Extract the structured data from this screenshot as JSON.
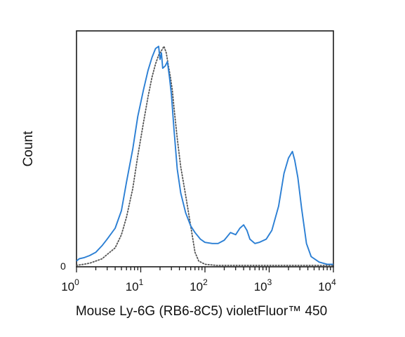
{
  "chart_data": {
    "type": "line",
    "title": "",
    "xlabel": "Mouse Ly-6G (RB6-8C5) violetFluor™ 450",
    "ylabel": "Count",
    "x_scale": "log10",
    "xlim": [
      1,
      10000
    ],
    "ylim": [
      0,
      100
    ],
    "y_tick_labels": [
      "0"
    ],
    "x_tick_labels": [
      {
        "base": "10",
        "exp": "0"
      },
      {
        "base": "10",
        "exp": "1"
      },
      {
        "base": "10",
        "exp": "2"
      },
      {
        "base": "10",
        "exp": "3"
      },
      {
        "base": "10",
        "exp": "4"
      }
    ],
    "grid": false,
    "series": [
      {
        "style": "solid",
        "color": "#2b7fd4",
        "x": [
          1.0,
          1.1,
          1.3,
          1.6,
          2.0,
          2.5,
          3.0,
          4.0,
          5.0,
          6.0,
          7.5,
          9.0,
          11,
          13,
          15,
          17,
          19,
          20,
          21,
          22,
          24,
          26,
          28,
          30,
          33,
          37,
          42,
          50,
          60,
          70,
          85,
          100,
          130,
          160,
          200,
          250,
          300,
          350,
          400,
          450,
          500,
          600,
          700,
          900,
          1100,
          1400,
          1700,
          2000,
          2300,
          2500,
          2800,
          3200,
          3800,
          4500,
          6000,
          8000,
          10000
        ],
        "y": [
          2,
          3,
          3.5,
          4.5,
          6,
          9,
          12,
          17,
          25,
          38,
          53,
          68,
          80,
          89,
          95,
          99,
          100,
          94,
          97,
          90,
          91,
          93,
          86,
          78,
          62,
          44,
          33,
          24,
          18,
          15,
          12,
          10.5,
          10,
          10,
          11.5,
          15,
          14,
          17,
          18.5,
          16,
          12,
          10,
          10.5,
          12,
          16,
          27,
          42,
          49,
          52,
          48,
          40,
          26,
          10,
          4,
          1.5,
          0.5,
          0.5
        ]
      },
      {
        "style": "dotted",
        "color": "#555555",
        "x": [
          1.0,
          1.3,
          1.6,
          2.0,
          2.5,
          3.0,
          4.0,
          5.0,
          6.0,
          7.5,
          9.0,
          11,
          13,
          15,
          17,
          19,
          21,
          23,
          25,
          27,
          29,
          31,
          33,
          37,
          42,
          50,
          60,
          70,
          80,
          100,
          150,
          300,
          1000,
          10000
        ],
        "y": [
          0,
          0.5,
          1,
          2,
          3,
          5,
          8,
          14,
          22,
          35,
          50,
          65,
          77,
          86,
          92,
          96,
          98,
          100,
          97,
          91,
          86,
          80,
          72,
          58,
          45,
          32,
          18,
          6,
          2,
          0.5,
          0,
          0,
          0,
          0
        ]
      }
    ]
  }
}
